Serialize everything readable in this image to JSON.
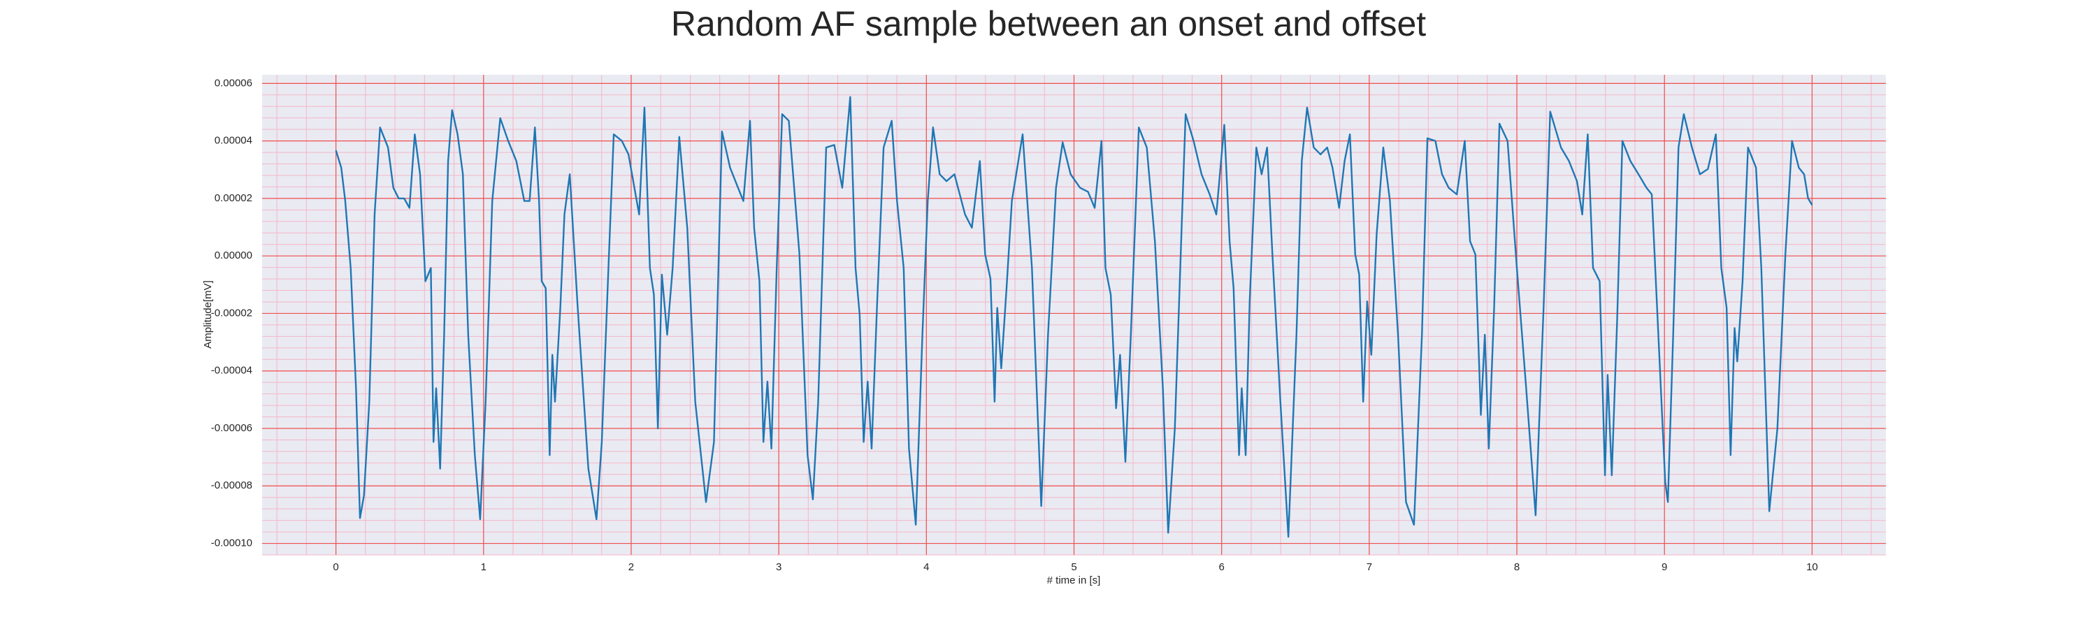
{
  "chart_data": {
    "type": "line",
    "title": "Random AF sample between an onset and offset",
    "x_label": "# time in [s]",
    "y_label": "Amplitude[mV]",
    "color": "#1f77b4",
    "grid": true,
    "minor_grid": true,
    "xlim": [
      -0.5,
      10.5
    ],
    "ylim": [
      -0.000104,
      6.3e-05
    ],
    "xticks": [
      0,
      1,
      2,
      3,
      4,
      5,
      6,
      7,
      8,
      9,
      10
    ],
    "yticks": [
      {
        "value": -0.0001,
        "label": "-0.00010"
      },
      -8e-05,
      -6e-05,
      -4e-05,
      -2e-05,
      {
        "value": 0,
        "label": "0.00000"
      },
      2e-05,
      4e-05,
      6e-05
    ],
    "x": [
      0.0,
      0.036,
      0.063,
      0.1,
      0.136,
      0.163,
      0.19,
      0.226,
      0.262,
      0.299,
      0.353,
      0.389,
      0.425,
      0.462,
      0.498,
      0.534,
      0.57,
      0.606,
      0.643,
      0.661,
      0.679,
      0.706,
      0.733,
      0.76,
      0.787,
      0.824,
      0.86,
      0.896,
      0.941,
      0.977,
      1.014,
      1.059,
      1.113,
      1.167,
      1.222,
      1.276,
      1.312,
      1.348,
      1.376,
      1.394,
      1.421,
      1.448,
      1.466,
      1.484,
      1.52,
      1.548,
      1.584,
      1.638,
      1.71,
      1.765,
      1.801,
      1.846,
      1.882,
      1.937,
      1.982,
      2.054,
      2.09,
      2.127,
      2.154,
      2.181,
      2.208,
      2.244,
      2.281,
      2.326,
      2.38,
      2.434,
      2.507,
      2.561,
      2.615,
      2.67,
      2.724,
      2.76,
      2.805,
      2.833,
      2.869,
      2.896,
      2.923,
      2.95,
      2.986,
      3.023,
      3.068,
      3.14,
      3.195,
      3.231,
      3.267,
      3.321,
      3.376,
      3.43,
      3.484,
      3.52,
      3.548,
      3.575,
      3.602,
      3.629,
      3.665,
      3.71,
      3.765,
      3.801,
      3.846,
      3.882,
      3.928,
      3.973,
      4.009,
      4.045,
      4.09,
      4.136,
      4.19,
      4.226,
      4.262,
      4.308,
      4.362,
      4.398,
      4.434,
      4.462,
      4.48,
      4.507,
      4.543,
      4.579,
      4.652,
      4.715,
      4.778,
      4.824,
      4.878,
      4.923,
      4.977,
      5.041,
      5.095,
      5.14,
      5.186,
      5.213,
      5.249,
      5.285,
      5.312,
      5.348,
      5.385,
      5.439,
      5.493,
      5.548,
      5.602,
      5.638,
      5.683,
      5.729,
      5.756,
      5.81,
      5.864,
      5.919,
      5.964,
      6.018,
      6.054,
      6.081,
      6.118,
      6.136,
      6.163,
      6.19,
      6.235,
      6.271,
      6.308,
      6.344,
      6.398,
      6.452,
      6.507,
      6.543,
      6.579,
      6.624,
      6.67,
      6.715,
      6.751,
      6.796,
      6.833,
      6.869,
      6.905,
      6.932,
      6.959,
      6.986,
      7.014,
      7.05,
      7.095,
      7.14,
      7.195,
      7.249,
      7.303,
      7.357,
      7.394,
      7.448,
      7.493,
      7.538,
      7.593,
      7.647,
      7.683,
      7.719,
      7.756,
      7.783,
      7.81,
      7.846,
      7.882,
      7.937,
      8.0,
      8.063,
      8.127,
      8.181,
      8.226,
      8.299,
      8.353,
      8.407,
      8.443,
      8.48,
      8.516,
      8.561,
      8.597,
      8.615,
      8.643,
      8.679,
      8.715,
      8.769,
      8.824,
      8.878,
      8.914,
      8.95,
      9.005,
      9.023,
      9.059,
      9.095,
      9.131,
      9.186,
      9.24,
      9.294,
      9.348,
      9.385,
      9.421,
      9.448,
      9.475,
      9.493,
      9.529,
      9.566,
      9.62,
      9.656,
      9.71,
      9.765,
      9.819,
      9.864,
      9.91,
      9.946,
      9.973,
      10.0
    ],
    "values": [
      3.67e-05,
      3.07e-05,
      1.91e-05,
      -4.2e-06,
      -4.6e-05,
      -9.12e-05,
      -8.33e-05,
      -5.07e-05,
      1.44e-05,
      4.47e-05,
      3.77e-05,
      2.37e-05,
      2e-05,
      2e-05,
      1.67e-05,
      4.23e-05,
      2.84e-05,
      -8.8e-06,
      -4.2e-06,
      -6.47e-05,
      -4.6e-05,
      -7.4e-05,
      -2.74e-05,
      3.3e-05,
      5.07e-05,
      4.23e-05,
      2.84e-05,
      -2.74e-05,
      -6.93e-05,
      -9.16e-05,
      -5.07e-05,
      1.91e-05,
      4.79e-05,
      4e-05,
      3.3e-05,
      1.91e-05,
      1.91e-05,
      4.47e-05,
      1.91e-05,
      -8.8e-06,
      -1.12e-05,
      -6.93e-05,
      -3.44e-05,
      -5.07e-05,
      -1.81e-05,
      1.44e-05,
      2.84e-05,
      -1.81e-05,
      -7.4e-05,
      -9.16e-05,
      -6.47e-05,
      -4.2e-06,
      4.23e-05,
      4e-05,
      3.53e-05,
      1.44e-05,
      5.16e-05,
      -4.2e-06,
      -1.35e-05,
      -6e-05,
      -6.5e-06,
      -2.74e-05,
      -4.2e-06,
      4.14e-05,
      9.8e-06,
      -5.07e-05,
      -8.56e-05,
      -6.47e-05,
      4.33e-05,
      3.07e-05,
      2.37e-05,
      1.91e-05,
      4.7e-05,
      9.8e-06,
      -8.8e-06,
      -6.47e-05,
      -4.37e-05,
      -6.7e-05,
      -4.2e-06,
      4.93e-05,
      4.7e-05,
      5e-07,
      -6.93e-05,
      -8.47e-05,
      -5.07e-05,
      3.77e-05,
      3.86e-05,
      2.37e-05,
      5.53e-05,
      -4.2e-06,
      -2.05e-05,
      -6.47e-05,
      -4.37e-05,
      -6.7e-05,
      -1.81e-05,
      3.77e-05,
      4.7e-05,
      1.91e-05,
      -4.2e-06,
      -6.7e-05,
      -9.35e-05,
      -2.74e-05,
      1.91e-05,
      4.47e-05,
      2.84e-05,
      2.6e-05,
      2.84e-05,
      2.14e-05,
      1.44e-05,
      9.8e-06,
      3.3e-05,
      5e-07,
      -7.9e-06,
      -5.07e-05,
      -1.81e-05,
      -3.91e-05,
      -1.12e-05,
      1.91e-05,
      4.23e-05,
      -4.2e-06,
      -8.7e-05,
      -2.74e-05,
      2.37e-05,
      3.95e-05,
      2.84e-05,
      2.37e-05,
      2.23e-05,
      1.67e-05,
      4e-05,
      -4.2e-06,
      -1.35e-05,
      -5.3e-05,
      -3.44e-05,
      -7.16e-05,
      -2.74e-05,
      4.47e-05,
      3.77e-05,
      5.1e-06,
      -4.6e-05,
      -9.63e-05,
      -6e-05,
      9.8e-06,
      4.93e-05,
      4e-05,
      2.84e-05,
      2.14e-05,
      1.44e-05,
      4.56e-05,
      5.1e-06,
      -1.12e-05,
      -6.93e-05,
      -4.6e-05,
      -6.93e-05,
      -1.58e-05,
      3.77e-05,
      2.84e-05,
      3.77e-05,
      5e-07,
      -5.07e-05,
      -9.77e-05,
      -2.74e-05,
      3.3e-05,
      5.16e-05,
      3.77e-05,
      3.53e-05,
      3.77e-05,
      3.07e-05,
      1.67e-05,
      3.3e-05,
      4.23e-05,
      5e-07,
      -6.5e-06,
      -5.07e-05,
      -1.58e-05,
      -3.44e-05,
      7.4e-06,
      3.77e-05,
      1.91e-05,
      -2.74e-05,
      -8.56e-05,
      -9.35e-05,
      -2.74e-05,
      4.09e-05,
      4e-05,
      2.84e-05,
      2.37e-05,
      2.14e-05,
      4e-05,
      5.1e-06,
      5e-07,
      -5.53e-05,
      -2.74e-05,
      -6.7e-05,
      -1.81e-05,
      4.6e-05,
      4e-05,
      -4.2e-06,
      -4.6e-05,
      -9.02e-05,
      -1.81e-05,
      5.02e-05,
      3.77e-05,
      3.3e-05,
      2.6e-05,
      1.44e-05,
      4.23e-05,
      -4.2e-06,
      -8.8e-06,
      -7.63e-05,
      -4.14e-05,
      -7.63e-05,
      -2.28e-05,
      4e-05,
      3.3e-05,
      2.84e-05,
      2.37e-05,
      2.14e-05,
      -1.81e-05,
      -7.86e-05,
      -8.56e-05,
      -2.74e-05,
      3.77e-05,
      4.93e-05,
      3.77e-05,
      2.84e-05,
      3.02e-05,
      4.23e-05,
      -4.2e-06,
      -1.81e-05,
      -6.93e-05,
      -2.51e-05,
      -3.67e-05,
      -8.8e-06,
      3.77e-05,
      3.07e-05,
      -4.2e-06,
      -8.88e-05,
      -6e-05,
      5e-07,
      4e-05,
      3.07e-05,
      2.84e-05,
      2e-05,
      1.77e-05
    ]
  }
}
